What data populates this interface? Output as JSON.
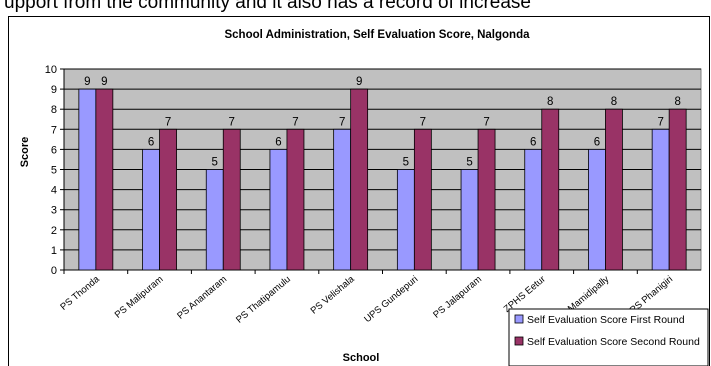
{
  "document": {
    "text_fragment": "upport from the community and it also has a record of increase"
  },
  "chart_data": {
    "type": "bar",
    "title": "School Administration, Self Evaluation Score, Nalgonda",
    "xlabel": "School",
    "ylabel": "Score",
    "ylim": [
      0,
      10
    ],
    "yticks": [
      0,
      1,
      2,
      3,
      4,
      5,
      6,
      7,
      8,
      9,
      10
    ],
    "grid": true,
    "legend_position": "bottom-right",
    "categories": [
      "PS Thonda",
      "PS Malipuram",
      "PS Anantaram",
      "PS Thatipamulu",
      "PS Velishala",
      "UPS Gundepuri",
      "PS Jalapuram",
      "ZPHS Eetur",
      "PS Mamidipally",
      "PS Phanigiri"
    ],
    "series": [
      {
        "name": "Self Evaluation Score First Round",
        "color": "#9999ff",
        "values": [
          9,
          6,
          5,
          6,
          7,
          5,
          5,
          6,
          6,
          7
        ]
      },
      {
        "name": "Self Evaluation Score Second Round",
        "color": "#993366",
        "values": [
          9,
          7,
          7,
          7,
          9,
          7,
          7,
          8,
          8,
          8
        ]
      }
    ],
    "plot_background": "#c0c0c0"
  }
}
